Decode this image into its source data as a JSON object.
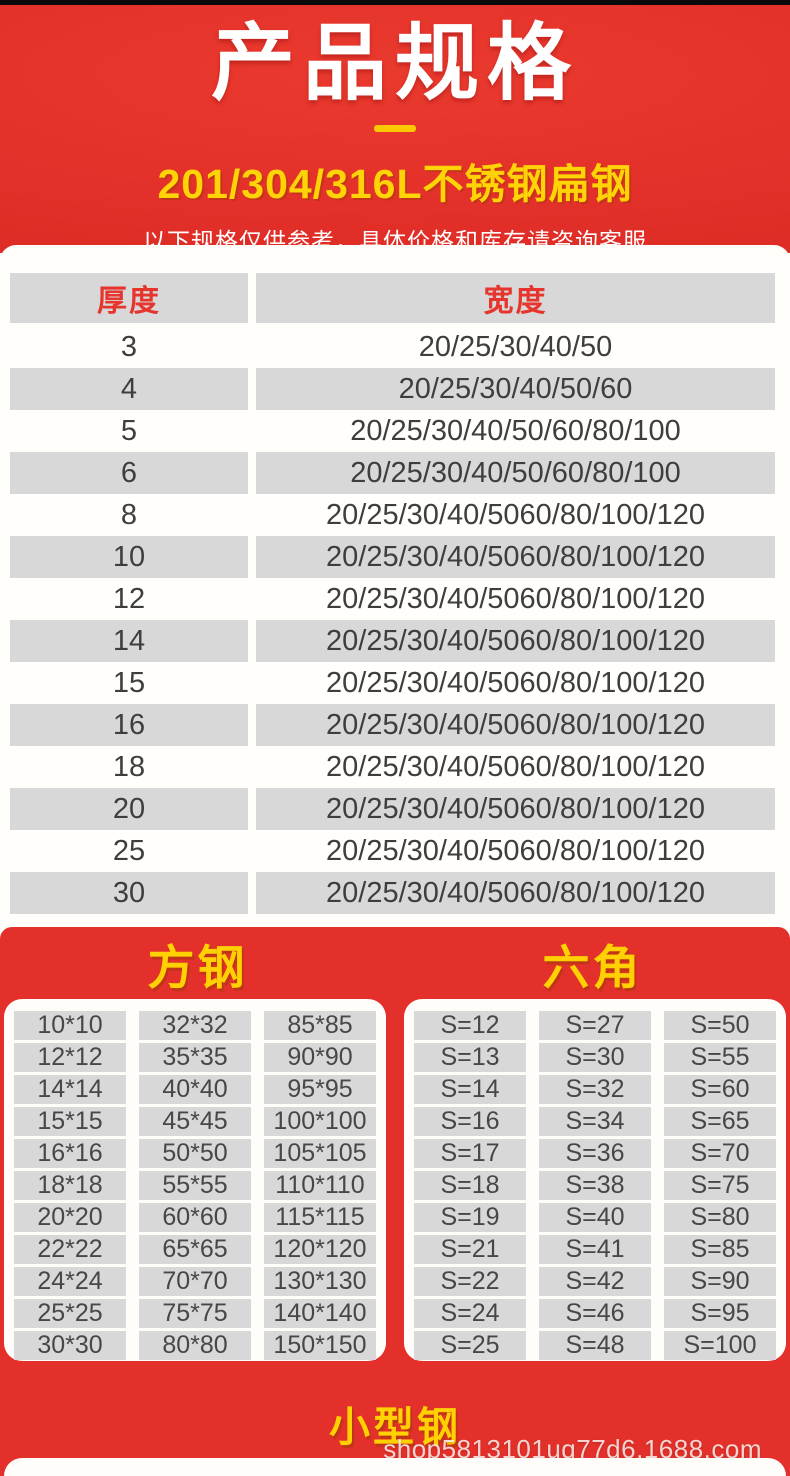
{
  "header": {
    "title": "产品规格",
    "subtitle": "201/304/316L不锈钢扁钢",
    "note": "以下规格仅供参考，具体价格和库存请咨询客服"
  },
  "spec_table": {
    "columns": {
      "thickness": "厚度",
      "width": "宽度"
    },
    "rows": [
      {
        "thickness": "3",
        "width": "20/25/30/40/50"
      },
      {
        "thickness": "4",
        "width": "20/25/30/40/50/60"
      },
      {
        "thickness": "5",
        "width": "20/25/30/40/50/60/80/100"
      },
      {
        "thickness": "6",
        "width": "20/25/30/40/50/60/80/100"
      },
      {
        "thickness": "8",
        "width": "20/25/30/40/5060/80/100/120"
      },
      {
        "thickness": "10",
        "width": "20/25/30/40/5060/80/100/120"
      },
      {
        "thickness": "12",
        "width": "20/25/30/40/5060/80/100/120"
      },
      {
        "thickness": "14",
        "width": "20/25/30/40/5060/80/100/120"
      },
      {
        "thickness": "15",
        "width": "20/25/30/40/5060/80/100/120"
      },
      {
        "thickness": "16",
        "width": "20/25/30/40/5060/80/100/120"
      },
      {
        "thickness": "18",
        "width": "20/25/30/40/5060/80/100/120"
      },
      {
        "thickness": "20",
        "width": "20/25/30/40/5060/80/100/120"
      },
      {
        "thickness": "25",
        "width": "20/25/30/40/5060/80/100/120"
      },
      {
        "thickness": "30",
        "width": "20/25/30/40/5060/80/100/120"
      }
    ]
  },
  "square_steel": {
    "title": "方钢",
    "columns": [
      [
        "10*10",
        "12*12",
        "14*14",
        "15*15",
        "16*16",
        "18*18",
        "20*20",
        "22*22",
        "24*24",
        "25*25",
        "30*30"
      ],
      [
        "32*32",
        "35*35",
        "40*40",
        "45*45",
        "50*50",
        "55*55",
        "60*60",
        "65*65",
        "70*70",
        "75*75",
        "80*80"
      ],
      [
        "85*85",
        "90*90",
        "95*95",
        "100*100",
        "105*105",
        "110*110",
        "115*115",
        "120*120",
        "130*130",
        "140*140",
        "150*150"
      ]
    ]
  },
  "hexagon_steel": {
    "title": "六角",
    "columns": [
      [
        "S=12",
        "S=13",
        "S=14",
        "S=16",
        "S=17",
        "S=18",
        "S=19",
        "S=21",
        "S=22",
        "S=24",
        "S=25"
      ],
      [
        "S=27",
        "S=30",
        "S=32",
        "S=34",
        "S=36",
        "S=38",
        "S=40",
        "S=41",
        "S=42",
        "S=46",
        "S=48"
      ],
      [
        "S=50",
        "S=55",
        "S=60",
        "S=65",
        "S=70",
        "S=75",
        "S=80",
        "S=85",
        "S=90",
        "S=95",
        "S=100"
      ]
    ]
  },
  "small_steel": {
    "title": "小型钢"
  },
  "watermark": "shop5813101uq77d6.1688.com",
  "colors": {
    "brand_red": "#e3302a",
    "accent_yellow": "#ffd103",
    "cell_gray": "#d8d8d8",
    "text_dark": "#3e3e3e",
    "table_header_red": "#e5352d"
  }
}
